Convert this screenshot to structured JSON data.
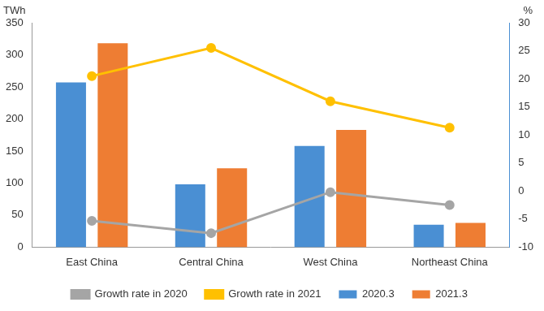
{
  "chart_data": {
    "type": "bar",
    "ylabel": "TWh",
    "y2label": "%",
    "categories": [
      "East China",
      "Central China",
      "West China",
      "Northeast China"
    ],
    "series": [
      {
        "name": "2020.3",
        "type": "bar",
        "color": "#4A8FD3",
        "values": [
          257,
          98,
          158,
          35
        ]
      },
      {
        "name": "2021.3",
        "type": "bar",
        "color": "#EE7D33",
        "values": [
          318,
          123,
          183,
          38
        ]
      },
      {
        "name": "Growth rate in 2020",
        "type": "line",
        "color": "#A5A5A5",
        "marker": "circle",
        "axis": "y2",
        "values": [
          -5.3,
          -7.5,
          -0.2,
          -2.5
        ]
      },
      {
        "name": "Growth rate in 2021",
        "type": "line",
        "color": "#FFC000",
        "marker": "circle",
        "axis": "y2",
        "values": [
          20.5,
          25.5,
          16,
          11.3
        ]
      }
    ],
    "ylim": [
      0,
      350
    ],
    "yticks": [
      0,
      50,
      100,
      150,
      200,
      250,
      300,
      350
    ],
    "y2lim": [
      -10,
      30
    ],
    "y2ticks": [
      -10,
      -5,
      0,
      5,
      10,
      15,
      20,
      25,
      30
    ],
    "grid": false,
    "legend": "bottom"
  }
}
